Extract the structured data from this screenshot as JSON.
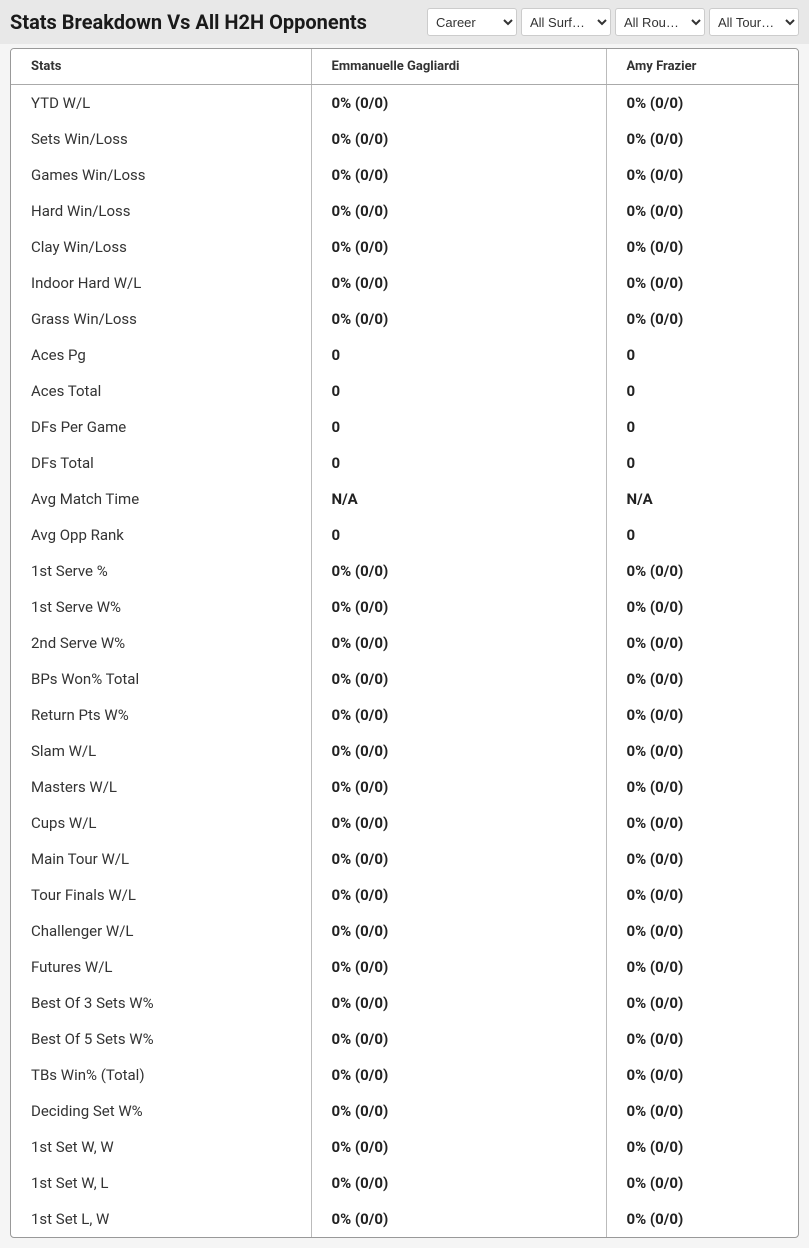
{
  "title": "Stats Breakdown Vs All H2H Opponents",
  "filters": {
    "f1": "Career",
    "f2": "All Surf…",
    "f3": "All Rou…",
    "f4": "All Tour…"
  },
  "table": {
    "columns": {
      "c1": "Stats",
      "c2": "Emmanuelle Gagliardi",
      "c3": "Amy Frazier"
    },
    "rows": [
      {
        "stat": "YTD W/L",
        "p1": "0% (0/0)",
        "p2": "0% (0/0)"
      },
      {
        "stat": "Sets Win/Loss",
        "p1": "0% (0/0)",
        "p2": "0% (0/0)"
      },
      {
        "stat": "Games Win/Loss",
        "p1": "0% (0/0)",
        "p2": "0% (0/0)"
      },
      {
        "stat": "Hard Win/Loss",
        "p1": "0% (0/0)",
        "p2": "0% (0/0)"
      },
      {
        "stat": "Clay Win/Loss",
        "p1": "0% (0/0)",
        "p2": "0% (0/0)"
      },
      {
        "stat": "Indoor Hard W/L",
        "p1": "0% (0/0)",
        "p2": "0% (0/0)"
      },
      {
        "stat": "Grass Win/Loss",
        "p1": "0% (0/0)",
        "p2": "0% (0/0)"
      },
      {
        "stat": "Aces Pg",
        "p1": "0",
        "p2": "0"
      },
      {
        "stat": "Aces Total",
        "p1": "0",
        "p2": "0"
      },
      {
        "stat": "DFs Per Game",
        "p1": "0",
        "p2": "0"
      },
      {
        "stat": "DFs Total",
        "p1": "0",
        "p2": "0"
      },
      {
        "stat": "Avg Match Time",
        "p1": "N/A",
        "p2": "N/A"
      },
      {
        "stat": "Avg Opp Rank",
        "p1": "0",
        "p2": "0"
      },
      {
        "stat": "1st Serve %",
        "p1": "0% (0/0)",
        "p2": "0% (0/0)"
      },
      {
        "stat": "1st Serve W%",
        "p1": "0% (0/0)",
        "p2": "0% (0/0)"
      },
      {
        "stat": "2nd Serve W%",
        "p1": "0% (0/0)",
        "p2": "0% (0/0)"
      },
      {
        "stat": "BPs Won% Total",
        "p1": "0% (0/0)",
        "p2": "0% (0/0)"
      },
      {
        "stat": "Return Pts W%",
        "p1": "0% (0/0)",
        "p2": "0% (0/0)"
      },
      {
        "stat": "Slam W/L",
        "p1": "0% (0/0)",
        "p2": "0% (0/0)"
      },
      {
        "stat": "Masters W/L",
        "p1": "0% (0/0)",
        "p2": "0% (0/0)"
      },
      {
        "stat": "Cups W/L",
        "p1": "0% (0/0)",
        "p2": "0% (0/0)"
      },
      {
        "stat": "Main Tour W/L",
        "p1": "0% (0/0)",
        "p2": "0% (0/0)"
      },
      {
        "stat": "Tour Finals W/L",
        "p1": "0% (0/0)",
        "p2": "0% (0/0)"
      },
      {
        "stat": "Challenger W/L",
        "p1": "0% (0/0)",
        "p2": "0% (0/0)"
      },
      {
        "stat": "Futures W/L",
        "p1": "0% (0/0)",
        "p2": "0% (0/0)"
      },
      {
        "stat": "Best Of 3 Sets W%",
        "p1": "0% (0/0)",
        "p2": "0% (0/0)"
      },
      {
        "stat": "Best Of 5 Sets W%",
        "p1": "0% (0/0)",
        "p2": "0% (0/0)"
      },
      {
        "stat": "TBs Win% (Total)",
        "p1": "0% (0/0)",
        "p2": "0% (0/0)"
      },
      {
        "stat": "Deciding Set W%",
        "p1": "0% (0/0)",
        "p2": "0% (0/0)"
      },
      {
        "stat": "1st Set W, W",
        "p1": "0% (0/0)",
        "p2": "0% (0/0)"
      },
      {
        "stat": "1st Set W, L",
        "p1": "0% (0/0)",
        "p2": "0% (0/0)"
      },
      {
        "stat": "1st Set L, W",
        "p1": "0% (0/0)",
        "p2": "0% (0/0)"
      }
    ]
  }
}
